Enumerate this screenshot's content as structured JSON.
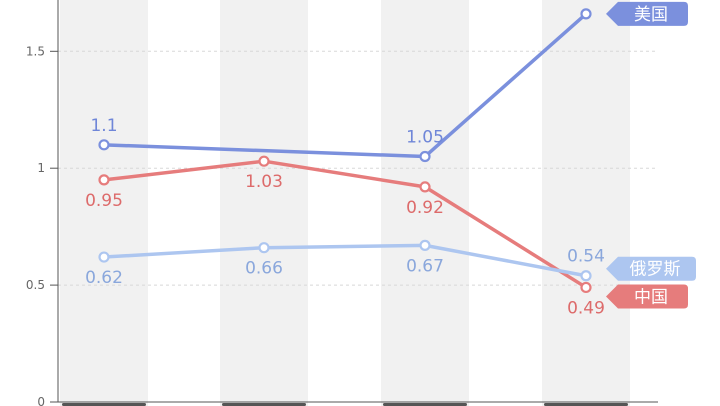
{
  "chart_data": {
    "type": "line",
    "categories": [
      "",
      "",
      "",
      ""
    ],
    "y_ticks": [
      0,
      0.5,
      1,
      1.5
    ],
    "ylim": [
      0,
      1.72
    ],
    "grid": true,
    "series": [
      {
        "name": "美国",
        "color": "#7b90dd",
        "values": [
          1.1,
          null,
          1.05,
          1.66
        ],
        "labels": [
          "1.1",
          "",
          "1.05",
          ""
        ]
      },
      {
        "name": "中国",
        "color": "#e67c7c",
        "values": [
          0.95,
          1.03,
          0.92,
          0.49
        ],
        "labels": [
          "0.95",
          "1.03",
          "0.92",
          "0.49"
        ]
      },
      {
        "name": "俄罗斯",
        "color": "#adc6f0",
        "values": [
          0.62,
          0.66,
          0.67,
          0.54
        ],
        "labels": [
          "0.62",
          "0.66",
          "0.67",
          "0.54"
        ]
      }
    ]
  }
}
